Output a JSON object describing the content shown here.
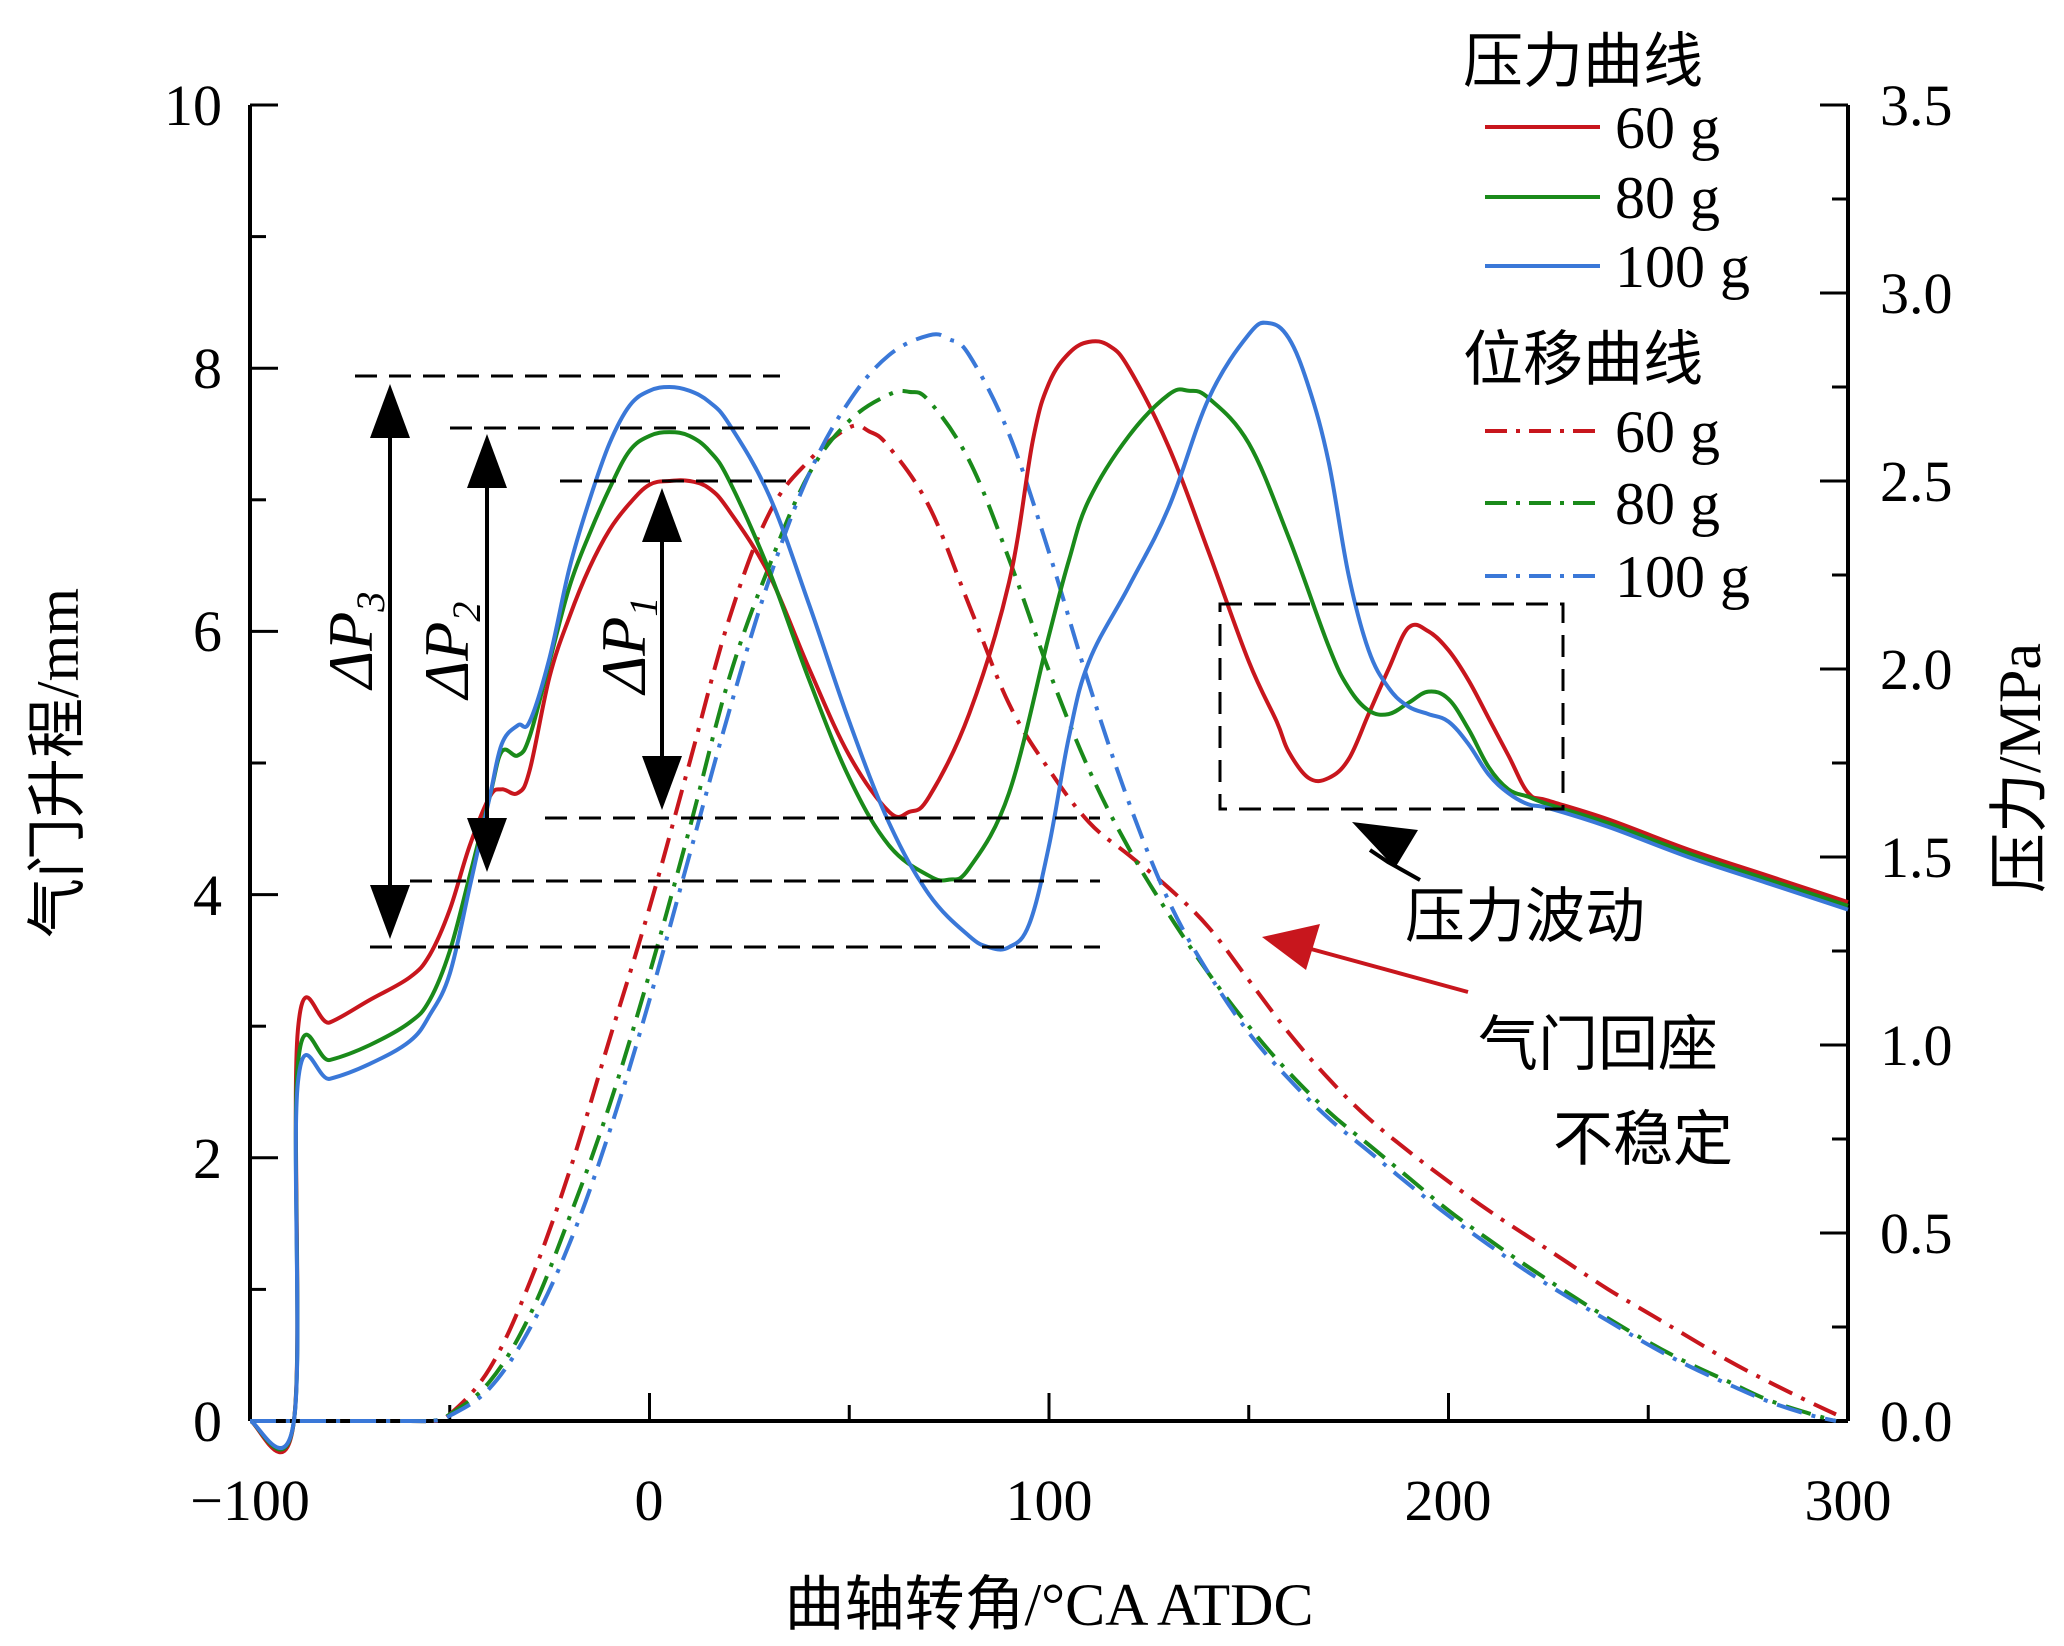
{
  "chart_data": {
    "type": "line",
    "xlabel": "曲轴转角/°CA ATDC",
    "ylabel": "气门升程/mm",
    "y2label": "压力/MPa",
    "xlim": [
      -100,
      300
    ],
    "ylim": [
      0,
      10
    ],
    "y2lim": [
      0,
      3.5
    ],
    "xticks": [
      "−100",
      "0",
      "100",
      "200",
      "300"
    ],
    "yticks": [
      "0",
      "2",
      "4",
      "6",
      "8",
      "10"
    ],
    "y2ticks": [
      "0.0",
      "0.5",
      "1.0",
      "1.5",
      "2.0",
      "2.5",
      "3.0",
      "3.5"
    ],
    "legend": {
      "pressure_title": "压力曲线",
      "displacement_title": "位移曲线",
      "pressure_items": [
        "60 g",
        "80 g",
        "100 g"
      ],
      "displacement_items": [
        "60 g",
        "80 g",
        "100 g"
      ]
    },
    "colors": {
      "60 g": "#c8161d",
      "80 g": "#1a8a1a",
      "100 g": "#3a78d8"
    },
    "pressure_series": [
      {
        "name": "60 g",
        "axis": "right",
        "style": "solid",
        "x": [
          -100,
          -89,
          -88,
          -80,
          -70,
          -60,
          -55,
          -50,
          -45,
          -40,
          -37,
          -33,
          -30,
          -25,
          -20,
          -15,
          -10,
          -5,
          0,
          5,
          10,
          15,
          20,
          30,
          40,
          50,
          60,
          65,
          70,
          80,
          90,
          96,
          100,
          105,
          110,
          115,
          120,
          130,
          140,
          150,
          157,
          160,
          165,
          170,
          175,
          180,
          185,
          190,
          195,
          200,
          205,
          210,
          215,
          220,
          225,
          240,
          260,
          280,
          300
        ],
        "y": [
          0,
          0,
          1.04,
          1.06,
          1.12,
          1.18,
          1.24,
          1.36,
          1.53,
          1.66,
          1.68,
          1.67,
          1.73,
          1.98,
          2.14,
          2.27,
          2.37,
          2.44,
          2.49,
          2.5,
          2.5,
          2.48,
          2.42,
          2.25,
          2.0,
          1.77,
          1.62,
          1.62,
          1.66,
          1.88,
          2.23,
          2.61,
          2.76,
          2.84,
          2.87,
          2.86,
          2.8,
          2.59,
          2.31,
          2.02,
          1.86,
          1.78,
          1.71,
          1.71,
          1.76,
          1.88,
          2.0,
          2.11,
          2.1,
          2.05,
          1.97,
          1.87,
          1.77,
          1.67,
          1.65,
          1.6,
          1.52,
          1.45,
          1.38
        ]
      },
      {
        "name": "80 g",
        "axis": "right",
        "style": "solid",
        "x": [
          -100,
          -89,
          -88,
          -80,
          -70,
          -60,
          -55,
          -50,
          -45,
          -40,
          -37,
          -33,
          -30,
          -25,
          -20,
          -15,
          -10,
          -5,
          0,
          5,
          10,
          15,
          20,
          30,
          40,
          50,
          60,
          70,
          75,
          80,
          90,
          100,
          105,
          110,
          120,
          130,
          135,
          140,
          150,
          160,
          170,
          175,
          180,
          185,
          190,
          195,
          200,
          205,
          210,
          215,
          220,
          225,
          240,
          260,
          280,
          300
        ],
        "y": [
          0,
          0,
          0.95,
          0.96,
          1.0,
          1.06,
          1.12,
          1.25,
          1.45,
          1.66,
          1.78,
          1.77,
          1.82,
          2.02,
          2.22,
          2.36,
          2.48,
          2.58,
          2.62,
          2.63,
          2.62,
          2.58,
          2.5,
          2.26,
          1.97,
          1.71,
          1.53,
          1.45,
          1.44,
          1.47,
          1.67,
          2.09,
          2.29,
          2.45,
          2.62,
          2.73,
          2.74,
          2.72,
          2.6,
          2.35,
          2.06,
          1.95,
          1.89,
          1.88,
          1.91,
          1.94,
          1.92,
          1.84,
          1.74,
          1.68,
          1.66,
          1.64,
          1.59,
          1.51,
          1.44,
          1.37
        ]
      },
      {
        "name": "100 g",
        "axis": "right",
        "style": "solid",
        "x": [
          -100,
          -89,
          -88,
          -80,
          -70,
          -60,
          -55,
          -50,
          -45,
          -40,
          -37,
          -33,
          -30,
          -25,
          -20,
          -15,
          -10,
          -5,
          0,
          5,
          10,
          15,
          20,
          30,
          40,
          50,
          60,
          70,
          80,
          85,
          90,
          95,
          100,
          105,
          110,
          120,
          130,
          140,
          150,
          155,
          160,
          165,
          170,
          175,
          180,
          185,
          190,
          195,
          200,
          205,
          210,
          215,
          220,
          225,
          240,
          260,
          280,
          300
        ],
        "y": [
          0,
          0,
          0.9,
          0.91,
          0.95,
          1.01,
          1.08,
          1.19,
          1.42,
          1.66,
          1.8,
          1.85,
          1.86,
          2.03,
          2.27,
          2.45,
          2.6,
          2.7,
          2.74,
          2.75,
          2.74,
          2.71,
          2.65,
          2.46,
          2.17,
          1.86,
          1.59,
          1.4,
          1.29,
          1.26,
          1.26,
          1.32,
          1.53,
          1.82,
          2.02,
          2.22,
          2.43,
          2.72,
          2.89,
          2.92,
          2.88,
          2.75,
          2.55,
          2.25,
          2.05,
          1.95,
          1.9,
          1.88,
          1.86,
          1.8,
          1.72,
          1.67,
          1.64,
          1.63,
          1.58,
          1.5,
          1.43,
          1.36
        ]
      }
    ],
    "displacement_series": [
      {
        "name": "60 g",
        "axis": "left",
        "style": "dash-dot",
        "x": [
          -100,
          -60,
          -55,
          -50,
          -40,
          -30,
          -20,
          -10,
          0,
          10,
          20,
          30,
          40,
          50,
          55,
          60,
          70,
          80,
          90,
          100,
          110,
          120,
          130,
          140,
          150,
          160,
          170,
          180,
          190,
          200,
          210,
          220,
          230,
          240,
          250,
          260,
          270,
          280,
          290,
          297
        ],
        "y": [
          0,
          0,
          0,
          0.05,
          0.4,
          1.05,
          1.9,
          2.9,
          3.9,
          5.0,
          6.1,
          6.9,
          7.3,
          7.55,
          7.52,
          7.4,
          6.95,
          6.2,
          5.45,
          4.95,
          4.55,
          4.3,
          4.05,
          3.75,
          3.35,
          2.95,
          2.6,
          2.3,
          2.05,
          1.82,
          1.6,
          1.4,
          1.2,
          1.0,
          0.82,
          0.64,
          0.46,
          0.3,
          0.15,
          0.05
        ]
      },
      {
        "name": "80 g",
        "axis": "left",
        "style": "dash-dot",
        "x": [
          -100,
          -60,
          -55,
          -50,
          -40,
          -30,
          -20,
          -10,
          0,
          10,
          20,
          30,
          40,
          50,
          60,
          65,
          70,
          80,
          90,
          100,
          110,
          120,
          130,
          140,
          150,
          160,
          170,
          180,
          190,
          200,
          210,
          220,
          230,
          240,
          250,
          260,
          270,
          280,
          290,
          297
        ],
        "y": [
          0,
          0,
          0,
          0.05,
          0.3,
          0.8,
          1.55,
          2.4,
          3.4,
          4.5,
          5.65,
          6.5,
          7.2,
          7.6,
          7.8,
          7.82,
          7.75,
          7.3,
          6.55,
          5.7,
          4.95,
          4.35,
          3.85,
          3.4,
          3.0,
          2.65,
          2.35,
          2.1,
          1.85,
          1.6,
          1.38,
          1.17,
          0.97,
          0.78,
          0.6,
          0.44,
          0.3,
          0.16,
          0.06,
          0.0
        ]
      },
      {
        "name": "100 g",
        "axis": "left",
        "style": "dash-dot",
        "x": [
          -100,
          -60,
          -55,
          -50,
          -40,
          -30,
          -20,
          -10,
          0,
          10,
          20,
          30,
          40,
          50,
          60,
          70,
          75,
          80,
          90,
          100,
          110,
          120,
          130,
          140,
          150,
          160,
          170,
          180,
          190,
          200,
          210,
          220,
          230,
          240,
          250,
          260,
          270,
          280,
          290,
          297
        ],
        "y": [
          0,
          0,
          0,
          0.04,
          0.25,
          0.7,
          1.35,
          2.2,
          3.2,
          4.3,
          5.4,
          6.4,
          7.2,
          7.75,
          8.1,
          8.25,
          8.22,
          8.1,
          7.5,
          6.6,
          5.6,
          4.7,
          3.95,
          3.4,
          2.95,
          2.6,
          2.3,
          2.05,
          1.8,
          1.56,
          1.34,
          1.13,
          0.94,
          0.76,
          0.58,
          0.42,
          0.28,
          0.15,
          0.05,
          0.0
        ]
      }
    ],
    "delta_labels": [
      "ΔP1",
      "ΔP2",
      "ΔP3"
    ],
    "annotations": {
      "pressure_fluctuation": "压力波动",
      "valve_seat_line1": "气门回座",
      "valve_seat_line2": "不稳定"
    },
    "reference_lines_mpa": [
      1.24,
      1.42,
      1.6,
      2.49,
      2.63,
      2.78
    ],
    "grid": false,
    "legend_position": "top-right"
  }
}
